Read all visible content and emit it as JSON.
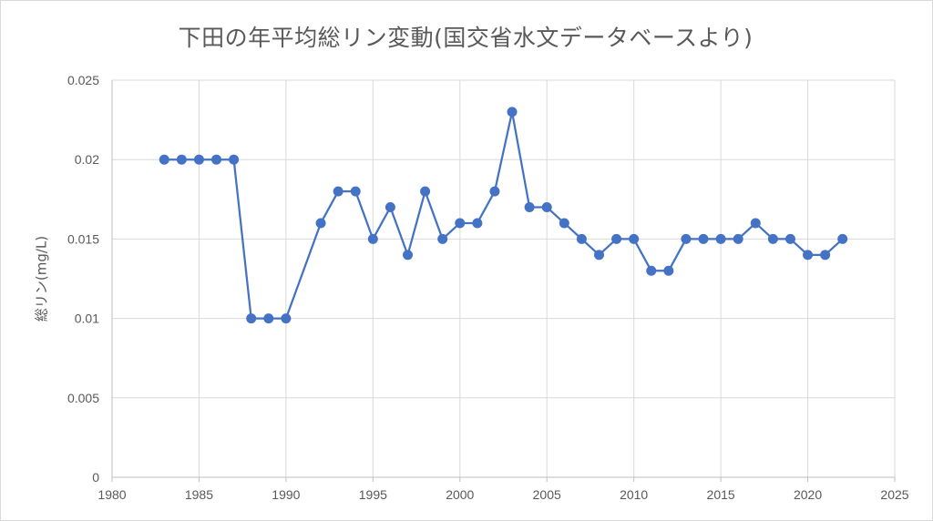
{
  "chart_data": {
    "type": "line",
    "title": "下田の年平均総リン変動(国交省水文データベースより)",
    "xlabel": "",
    "ylabel": "総リン(mg/L)",
    "xlim": [
      1980,
      2025
    ],
    "ylim": [
      0,
      0.025
    ],
    "x_ticks": [
      "1980",
      "1985",
      "1990",
      "1995",
      "2000",
      "2005",
      "2010",
      "2015",
      "2020",
      "2025"
    ],
    "y_ticks": [
      "0",
      "0.005",
      "0.01",
      "0.015",
      "0.02",
      "0.025"
    ],
    "grid": true,
    "legend": "none",
    "series": [
      {
        "color": "#4472c4",
        "marker": "circle",
        "points": [
          [
            1983,
            0.02
          ],
          [
            1984,
            0.02
          ],
          [
            1985,
            0.02
          ],
          [
            1986,
            0.02
          ],
          [
            1987,
            0.02
          ],
          [
            1988,
            0.01
          ],
          [
            1989,
            0.01
          ],
          [
            1990,
            0.01
          ],
          [
            1992,
            0.016
          ],
          [
            1993,
            0.018
          ],
          [
            1994,
            0.018
          ],
          [
            1995,
            0.015
          ],
          [
            1996,
            0.017
          ],
          [
            1997,
            0.014
          ],
          [
            1998,
            0.018
          ],
          [
            1999,
            0.015
          ],
          [
            2000,
            0.016
          ],
          [
            2001,
            0.016
          ],
          [
            2002,
            0.018
          ],
          [
            2003,
            0.023
          ],
          [
            2004,
            0.017
          ],
          [
            2005,
            0.017
          ],
          [
            2006,
            0.016
          ],
          [
            2007,
            0.015
          ],
          [
            2008,
            0.014
          ],
          [
            2009,
            0.015
          ],
          [
            2010,
            0.015
          ],
          [
            2011,
            0.013
          ],
          [
            2012,
            0.013
          ],
          [
            2013,
            0.015
          ],
          [
            2014,
            0.015
          ],
          [
            2015,
            0.015
          ],
          [
            2016,
            0.015
          ],
          [
            2017,
            0.016
          ],
          [
            2018,
            0.015
          ],
          [
            2019,
            0.015
          ],
          [
            2020,
            0.014
          ],
          [
            2021,
            0.014
          ],
          [
            2022,
            0.015
          ]
        ]
      }
    ]
  },
  "style": {
    "grid_color": "#d9d9d9",
    "axis_color": "#bfbfbf",
    "text_color": "#595959"
  }
}
